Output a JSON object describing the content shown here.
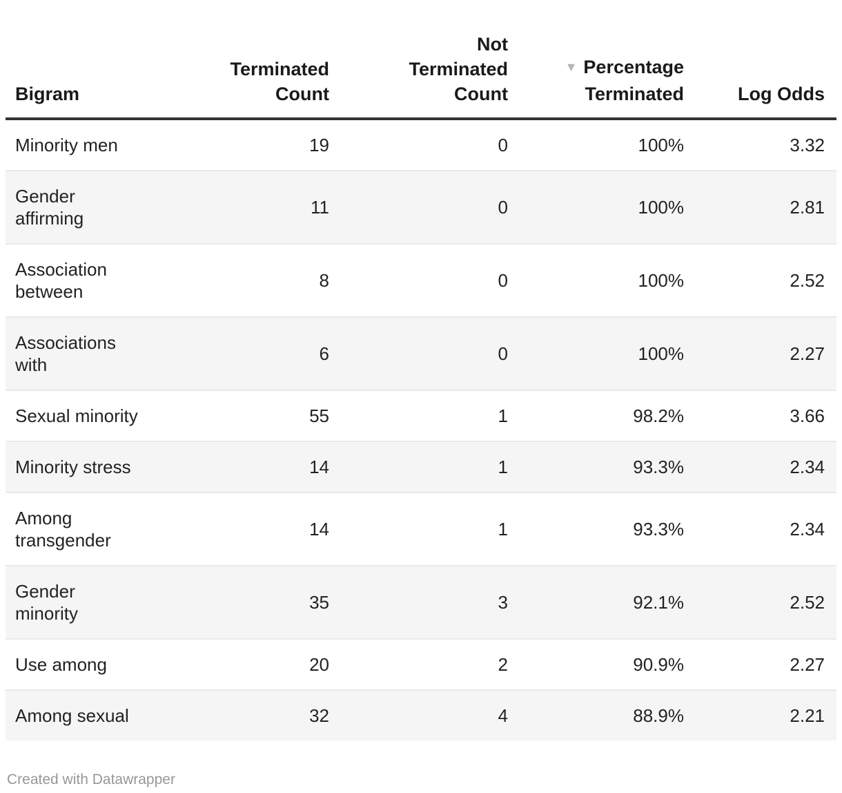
{
  "chart_data": {
    "type": "table",
    "sort_icon_glyph": "▼",
    "sorted_by": "Percentage Terminated",
    "sort_direction": "descending",
    "columns": [
      {
        "key": "bigram",
        "label": "Bigram",
        "align": "left"
      },
      {
        "key": "terminated_count",
        "label": "Terminated\nCount",
        "align": "right"
      },
      {
        "key": "not_terminated_count",
        "label": "Not\nTerminated\nCount",
        "align": "right"
      },
      {
        "key": "percentage_terminated",
        "label": "Percentage\nTerminated",
        "align": "right"
      },
      {
        "key": "log_odds",
        "label": "Log Odds",
        "align": "right"
      }
    ],
    "rows": [
      {
        "bigram": "Minority men",
        "terminated_count": 19,
        "not_terminated_count": 0,
        "percentage_terminated": "100%",
        "log_odds": "3.32"
      },
      {
        "bigram": "Gender\naffirming",
        "terminated_count": 11,
        "not_terminated_count": 0,
        "percentage_terminated": "100%",
        "log_odds": "2.81"
      },
      {
        "bigram": "Association\nbetween",
        "terminated_count": 8,
        "not_terminated_count": 0,
        "percentage_terminated": "100%",
        "log_odds": "2.52"
      },
      {
        "bigram": "Associations\nwith",
        "terminated_count": 6,
        "not_terminated_count": 0,
        "percentage_terminated": "100%",
        "log_odds": "2.27"
      },
      {
        "bigram": "Sexual minority",
        "terminated_count": 55,
        "not_terminated_count": 1,
        "percentage_terminated": "98.2%",
        "log_odds": "3.66"
      },
      {
        "bigram": "Minority stress",
        "terminated_count": 14,
        "not_terminated_count": 1,
        "percentage_terminated": "93.3%",
        "log_odds": "2.34"
      },
      {
        "bigram": "Among\ntransgender",
        "terminated_count": 14,
        "not_terminated_count": 1,
        "percentage_terminated": "93.3%",
        "log_odds": "2.34"
      },
      {
        "bigram": "Gender\nminority",
        "terminated_count": 35,
        "not_terminated_count": 3,
        "percentage_terminated": "92.1%",
        "log_odds": "2.52"
      },
      {
        "bigram": "Use among",
        "terminated_count": 20,
        "not_terminated_count": 2,
        "percentage_terminated": "90.9%",
        "log_odds": "2.27"
      },
      {
        "bigram": "Among sexual",
        "terminated_count": 32,
        "not_terminated_count": 4,
        "percentage_terminated": "88.9%",
        "log_odds": "2.21"
      }
    ],
    "colors": {
      "header_rule": "#333333",
      "row_stripe": "#f5f5f5",
      "row_separator": "#e9e9e9",
      "sort_icon": "#b5b5b5",
      "footer_text": "#979797"
    }
  },
  "footer": {
    "credit": "Created with Datawrapper"
  }
}
